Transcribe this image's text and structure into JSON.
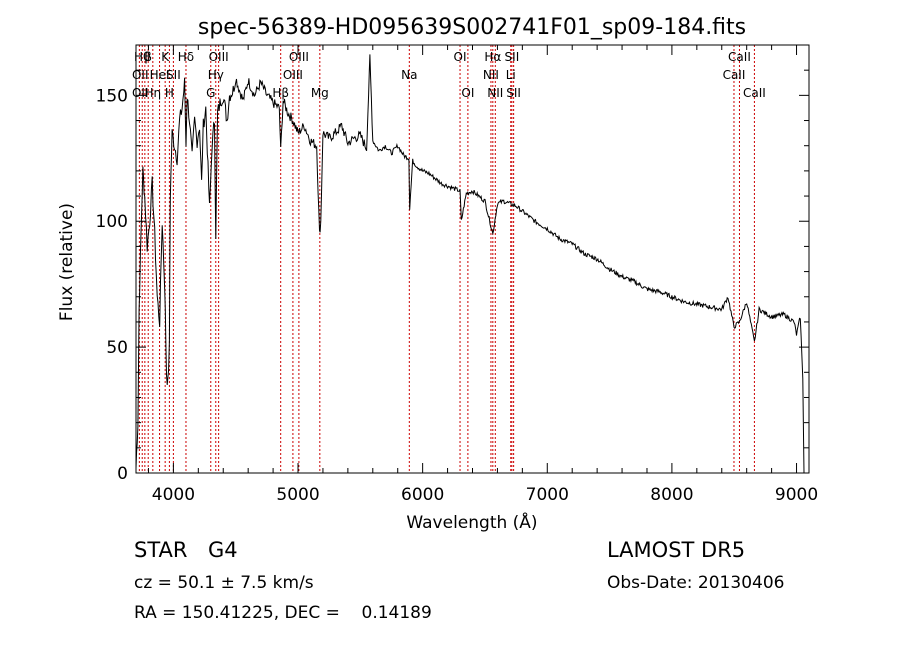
{
  "chart_data": {
    "type": "line",
    "title": "spec-56389-HD095639S002741F01_sp09-184.fits",
    "xlabel": "Wavelength (Å)",
    "ylabel": "Flux (relative)",
    "xlim": [
      3700,
      9100
    ],
    "ylim": [
      0,
      170
    ],
    "xticks": [
      4000,
      5000,
      6000,
      7000,
      8000,
      9000
    ],
    "yticks": [
      0,
      50,
      100,
      150
    ],
    "grid": false,
    "series": [
      {
        "x": [
          3700,
          3715,
          3725,
          3740,
          3755,
          3770,
          3790,
          3810,
          3830,
          3850,
          3870,
          3890,
          3910,
          3930,
          3945,
          3955,
          3968,
          3975,
          3990,
          4010,
          4030,
          4050,
          4070,
          4090,
          4101,
          4110,
          4130,
          4150,
          4170,
          4190,
          4210,
          4226,
          4240,
          4260,
          4290,
          4310,
          4330,
          4340,
          4355,
          4380,
          4400,
          4430,
          4450,
          4480,
          4500,
          4530,
          4560,
          4600,
          4650,
          4700,
          4750,
          4800,
          4850,
          4861,
          4880,
          4920,
          4960,
          5000,
          5050,
          5100,
          5150,
          5172,
          5183,
          5200,
          5250,
          5300,
          5350,
          5400,
          5450,
          5500,
          5550,
          5577,
          5600,
          5650,
          5700,
          5750,
          5800,
          5850,
          5890,
          5896,
          5920,
          5950,
          6000,
          6050,
          6100,
          6150,
          6200,
          6250,
          6300,
          6310,
          6350,
          6400,
          6450,
          6500,
          6563,
          6600,
          6650,
          6700,
          6750,
          6800,
          6900,
          7000,
          7100,
          7200,
          7300,
          7400,
          7500,
          7600,
          7700,
          7800,
          7900,
          8000,
          8100,
          8200,
          8300,
          8400,
          8450,
          8498,
          8542,
          8600,
          8662,
          8700,
          8800,
          8900,
          8980,
          9000,
          9030,
          9050,
          9060
        ],
        "values": [
          2,
          20,
          65,
          95,
          120,
          110,
          90,
          100,
          115,
          95,
          70,
          60,
          100,
          75,
          40,
          35,
          50,
          110,
          135,
          130,
          125,
          140,
          145,
          155,
          130,
          150,
          140,
          125,
          140,
          132,
          138,
          115,
          138,
          145,
          105,
          130,
          140,
          95,
          143,
          148,
          150,
          140,
          150,
          152,
          157,
          152,
          148,
          156,
          150,
          155,
          150,
          147,
          145,
          128,
          148,
          143,
          140,
          135,
          138,
          132,
          130,
          95,
          100,
          135,
          133,
          135,
          138,
          131,
          133,
          134,
          129,
          165,
          132,
          128,
          130,
          127,
          130,
          126,
          125,
          105,
          124,
          122,
          120,
          119,
          117,
          115,
          114,
          113,
          112,
          100,
          111,
          112,
          110,
          108,
          95,
          107,
          108,
          107,
          106,
          104,
          100,
          97,
          93,
          91,
          87,
          85,
          81,
          78,
          76,
          73,
          72,
          70,
          68,
          67,
          66,
          65,
          70,
          58,
          60,
          68,
          52,
          65,
          62,
          63,
          60,
          55,
          62,
          38,
          0
        ],
        "color": "#000000"
      }
    ],
    "line_labels": [
      {
        "wl": 3750,
        "text": "Hθ",
        "row": 0
      },
      {
        "wl": 3734,
        "text": "OII",
        "row": 1
      },
      {
        "wl": 3734,
        "text": "OII",
        "row": 2
      },
      {
        "wl": 3798,
        "text": "β",
        "row": 0
      },
      {
        "wl": 3835,
        "text": "Hη",
        "row": 2
      },
      {
        "wl": 3889,
        "text": "HeI",
        "row": 1
      },
      {
        "wl": 3934,
        "text": "K",
        "row": 0
      },
      {
        "wl": 3968,
        "text": "H",
        "row": 2
      },
      {
        "wl": 4000,
        "text": "SII",
        "row": 1
      },
      {
        "wl": 4101,
        "text": "Hδ",
        "row": 0
      },
      {
        "wl": 4300,
        "text": "G",
        "row": 2
      },
      {
        "wl": 4340,
        "text": "Hγ",
        "row": 1
      },
      {
        "wl": 4363,
        "text": "OIII",
        "row": 0
      },
      {
        "wl": 4861,
        "text": "Hβ",
        "row": 2
      },
      {
        "wl": 4959,
        "text": "OIII",
        "row": 1
      },
      {
        "wl": 5007,
        "text": "OIII",
        "row": 0
      },
      {
        "wl": 5175,
        "text": "Mg",
        "row": 2
      },
      {
        "wl": 5893,
        "text": "Na",
        "row": 1
      },
      {
        "wl": 6300,
        "text": "OI",
        "row": 0
      },
      {
        "wl": 6363,
        "text": "OI",
        "row": 2
      },
      {
        "wl": 6548,
        "text": "NII",
        "row": 1
      },
      {
        "wl": 6563,
        "text": "Hα",
        "row": 0
      },
      {
        "wl": 6583,
        "text": "NII",
        "row": 2
      },
      {
        "wl": 6707,
        "text": "Li",
        "row": 1
      },
      {
        "wl": 6716,
        "text": "SII",
        "row": 0
      },
      {
        "wl": 6730,
        "text": "SII",
        "row": 2
      },
      {
        "wl": 8498,
        "text": "CaII",
        "row": 1
      },
      {
        "wl": 8542,
        "text": "CaII",
        "row": 0
      },
      {
        "wl": 8662,
        "text": "CaII",
        "row": 2
      }
    ],
    "line_markers": [
      3727,
      3750,
      3771,
      3798,
      3835,
      3889,
      3934,
      3968,
      4000,
      4101,
      4300,
      4340,
      4363,
      4861,
      4959,
      5007,
      5175,
      5893,
      6300,
      6363,
      6548,
      6563,
      6583,
      6707,
      6716,
      6730,
      8498,
      8542,
      8662
    ],
    "marker_color": "#cc0000"
  },
  "info": {
    "object_class": "STAR",
    "subclass": "G4",
    "survey": "LAMOST DR5",
    "cz": "cz = 50.1 ± 7.5 km/s",
    "obs_date": "Obs-Date: 20130406",
    "radec": "RA = 150.41225, DEC =    0.14189"
  }
}
